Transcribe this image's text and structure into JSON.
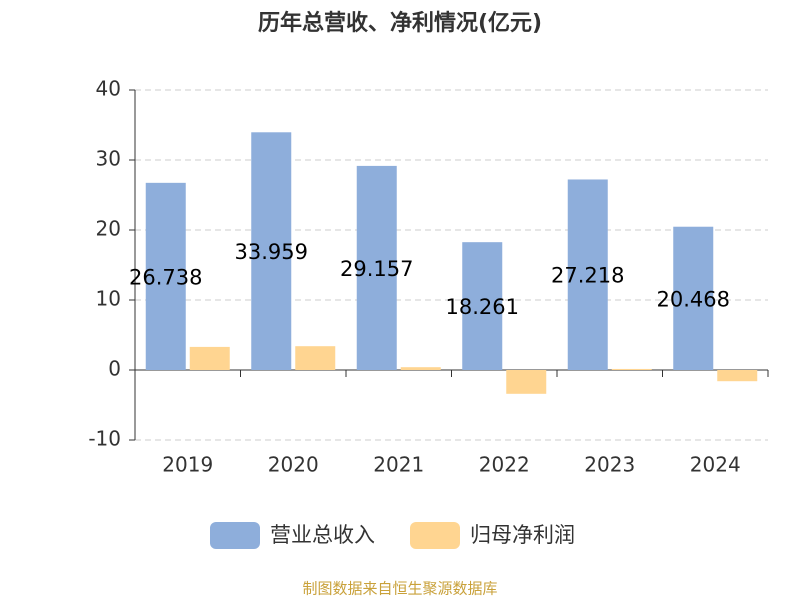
{
  "chart_data": {
    "type": "bar",
    "title": "历年总营收、净利情况(亿元)",
    "categories": [
      "2019",
      "2020",
      "2021",
      "2022",
      "2023",
      "2024"
    ],
    "series": [
      {
        "name": "营业总收入",
        "color": "#8eaedb",
        "values": [
          26.738,
          33.959,
          29.157,
          18.261,
          27.218,
          20.468
        ]
      },
      {
        "name": "归母净利润",
        "color": "#ffd591",
        "values": [
          3.3,
          3.4,
          0.4,
          -3.4,
          0.15,
          -1.6
        ]
      }
    ],
    "ylim": [
      -10,
      40
    ],
    "yticks": [
      -10,
      0,
      10,
      20,
      30,
      40
    ],
    "grid": true,
    "source": "制图数据来自恒生聚源数据库"
  }
}
